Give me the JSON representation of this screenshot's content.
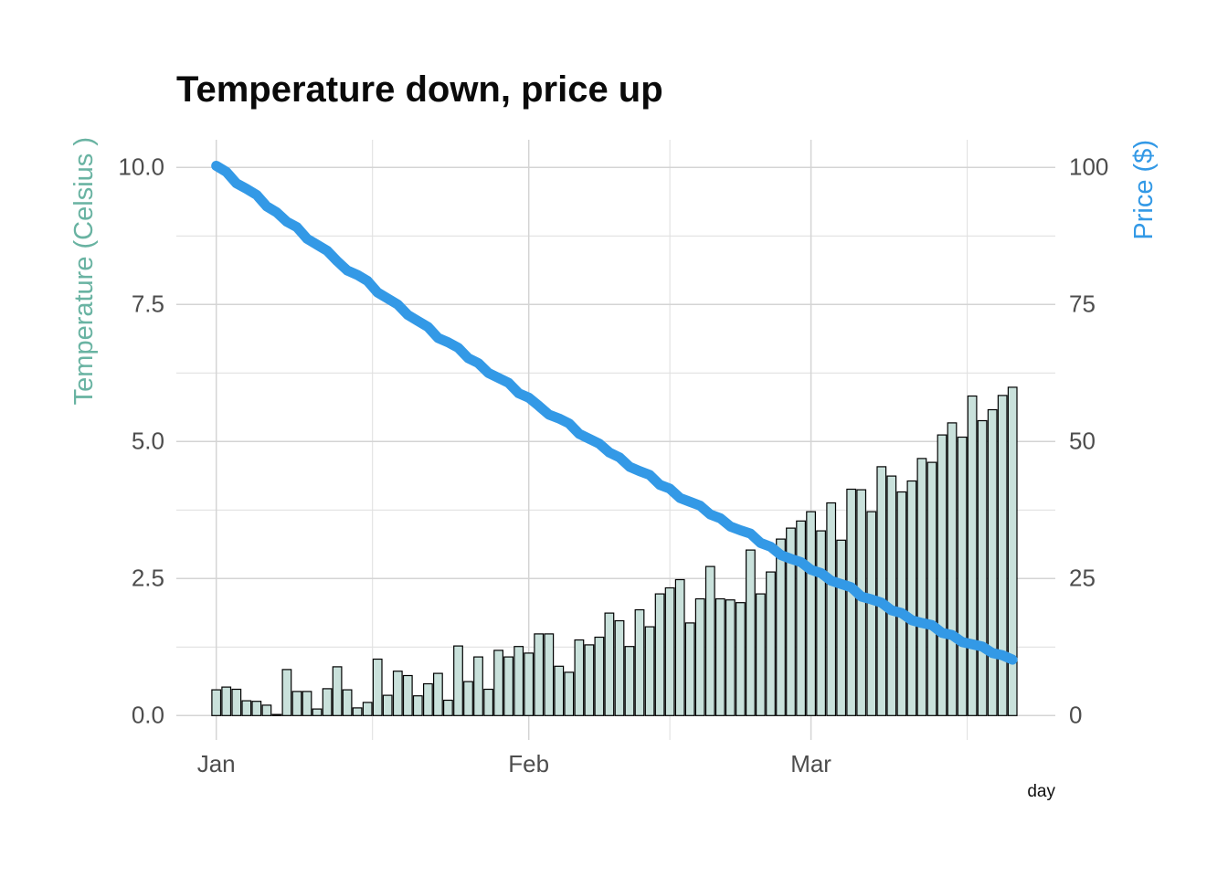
{
  "page": {
    "background": "#ffffff"
  },
  "chart_data": {
    "type": "bar",
    "subtype": "dual-axis bar + line",
    "title": "Temperature down, price up",
    "xlabel": "day",
    "x_tick_labels": [
      "Jan",
      "Feb",
      "Mar"
    ],
    "x_axis": {
      "n_days": 80,
      "major_tick_day_indices": [
        1,
        32,
        60
      ],
      "minor_tick_day_indices": [
        16.5,
        46,
        75.5
      ],
      "grid": "major and minor vertical gridlines, no axis line"
    },
    "y_left": {
      "label": "Temperature (Celsius )",
      "tick_labels": [
        "10.0",
        "7.5",
        "5.0",
        "2.5",
        "0.0"
      ],
      "tick_values": [
        10,
        7.5,
        5,
        2.5,
        0
      ],
      "minor_grid_values": [
        8.75,
        6.25,
        3.75,
        1.25
      ],
      "range": [
        0,
        10
      ],
      "color": "#69b3a2"
    },
    "y_right": {
      "label": "Price ($)",
      "tick_labels": [
        "100",
        "75",
        "50",
        "25",
        "0"
      ],
      "tick_values": [
        100,
        75,
        50,
        25,
        0
      ],
      "range": [
        0,
        100
      ],
      "color": "#3399e6"
    },
    "grid": {
      "major_color": "#d4d4d4",
      "minor_color": "#e1e1e1",
      "background": "#ffffff"
    },
    "legend": "none",
    "series": [
      {
        "name": "temperature",
        "type": "bar",
        "axis": "left",
        "fill": "#c9e1db",
        "stroke": "#000000",
        "values": [
          0.47,
          0.52,
          0.48,
          0.27,
          0.26,
          0.19,
          0.02,
          0.84,
          0.44,
          0.44,
          0.12,
          0.49,
          0.89,
          0.47,
          0.14,
          0.24,
          1.03,
          0.37,
          0.81,
          0.73,
          0.36,
          0.58,
          0.77,
          0.28,
          1.27,
          0.62,
          1.07,
          0.48,
          1.19,
          1.07,
          1.26,
          1.14,
          1.49,
          1.49,
          0.9,
          0.79,
          1.38,
          1.29,
          1.43,
          1.87,
          1.73,
          1.26,
          1.93,
          1.62,
          2.22,
          2.33,
          2.48,
          1.69,
          2.13,
          2.72,
          2.13,
          2.11,
          2.06,
          3.02,
          2.22,
          2.62,
          3.22,
          3.42,
          3.55,
          3.72,
          3.37,
          3.88,
          3.2,
          4.13,
          4.12,
          3.72,
          4.54,
          4.37,
          4.08,
          4.28,
          4.69,
          4.62,
          5.12,
          5.34,
          5.08,
          5.83,
          5.38,
          5.58,
          5.84,
          5.99
        ]
      },
      {
        "name": "price",
        "type": "line",
        "axis": "right",
        "color": "#3399e6",
        "values": [
          100.3,
          99.2,
          97.1,
          96.1,
          95.0,
          92.9,
          91.8,
          90.1,
          89.1,
          87.0,
          85.9,
          84.8,
          82.9,
          81.2,
          80.4,
          79.3,
          77.2,
          76.1,
          75.0,
          73.1,
          72.0,
          70.9,
          68.9,
          68.1,
          67.1,
          65.2,
          64.3,
          62.5,
          61.6,
          60.7,
          58.8,
          58.0,
          56.5,
          54.9,
          54.2,
          53.3,
          51.4,
          50.5,
          49.6,
          48.0,
          47.1,
          45.4,
          44.6,
          43.9,
          42.1,
          41.4,
          39.7,
          39.0,
          38.3,
          36.7,
          36.0,
          34.5,
          33.8,
          33.2,
          31.5,
          30.8,
          29.3,
          28.6,
          28.0,
          26.6,
          26.0,
          24.6,
          24.0,
          23.4,
          21.7,
          21.2,
          20.6,
          19.2,
          18.7,
          17.4,
          16.9,
          16.5,
          15.1,
          14.7,
          13.4,
          13.0,
          12.6,
          11.4,
          11.0,
          10.2
        ]
      }
    ]
  }
}
